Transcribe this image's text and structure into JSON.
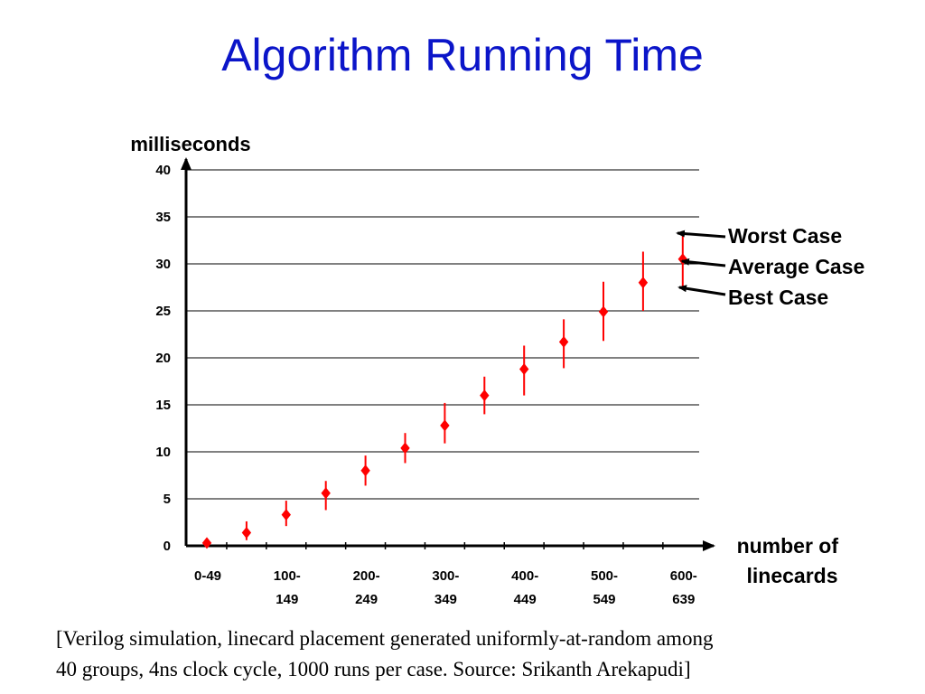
{
  "title": "Algorithm Running Time",
  "caption": {
    "line1": "[Verilog simulation, linecard placement generated uniformly-at-random among",
    "line2": "40 groups, 4ns clock cycle, 1000 runs per case. Source: Srikanth Arekapudi]"
  },
  "colors": {
    "title": "#0b15c9",
    "marker": "#ff0000"
  },
  "chart_data": {
    "type": "scatter",
    "ylabel": "milliseconds",
    "xlabel": [
      "number of",
      "linecards"
    ],
    "ylim": [
      0,
      40
    ],
    "yticks": [
      "0",
      "5",
      "10",
      "15",
      "20",
      "25",
      "30",
      "35",
      "40"
    ],
    "grid": true,
    "x_tick_labels": [
      [
        "0-49"
      ],
      [
        "100-",
        "149"
      ],
      [
        "200-",
        "249"
      ],
      [
        "300-",
        "349"
      ],
      [
        "400-",
        "449"
      ],
      [
        "500-",
        "549"
      ],
      [
        "600-",
        "639"
      ]
    ],
    "series": [
      {
        "average": [
          0.3,
          1.4,
          3.3,
          5.6,
          8.0,
          10.4,
          12.8,
          16.0,
          18.8,
          21.7,
          24.9,
          28.0,
          30.5
        ],
        "worst": [
          0.6,
          2.6,
          4.8,
          6.9,
          9.6,
          12.0,
          15.2,
          18.0,
          21.3,
          24.1,
          28.1,
          31.3,
          33.5
        ],
        "best": [
          0.0,
          0.6,
          2.1,
          3.8,
          6.4,
          8.8,
          10.9,
          14.0,
          16.0,
          18.9,
          21.8,
          25.0,
          27.6
        ]
      }
    ],
    "annotations": [
      "Worst Case",
      "Average Case",
      "Best Case"
    ]
  }
}
